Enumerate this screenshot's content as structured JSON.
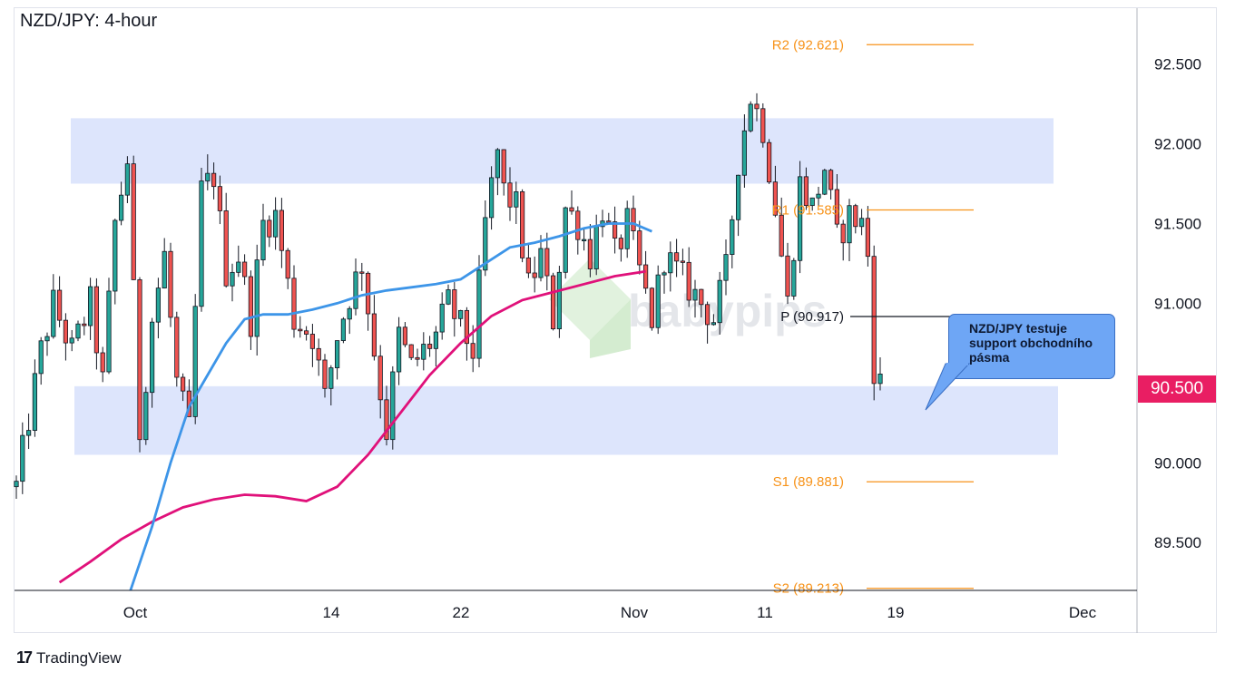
{
  "header": {
    "title": "NZD/JPY: 4-hour"
  },
  "branding": {
    "logo_mark": "17",
    "logo_text": "TradingView",
    "watermark": "babypips"
  },
  "callout": {
    "text": "NZD/JPY testuje support obchodního pásma"
  },
  "last_price": {
    "label": "90.500",
    "color": "#e91e63"
  },
  "chart_data": {
    "type": "candlestick",
    "title": "NZD/JPY: 4-hour",
    "ylim": [
      89.2,
      92.85
    ],
    "y_ticks": [
      "92.500",
      "92.000",
      "91.500",
      "91.000",
      "90.500",
      "90.000",
      "89.500"
    ],
    "x_ticks": [
      "Oct",
      "14",
      "22",
      "Nov",
      "11",
      "19",
      "Dec"
    ],
    "colors": {
      "up": "#26a69a",
      "down": "#ef5350",
      "candle": "#131722",
      "sma_fast": "#3d95e8",
      "sma_slow": "#e0117a",
      "pivot": "#f7931a",
      "zone": "#dde5fc"
    },
    "zones": [
      {
        "name": "resistance",
        "from": 91.75,
        "to": 92.16
      },
      {
        "name": "support",
        "from": 90.05,
        "to": 90.48
      }
    ],
    "pivot_levels": [
      {
        "label": "R2 (92.621)",
        "value": 92.621,
        "color": "#f7931a"
      },
      {
        "label": "R1 (91.585)",
        "value": 91.585,
        "color": "#f7931a"
      },
      {
        "label": "P (90.917)",
        "value": 90.917,
        "color": "#131722"
      },
      {
        "label": "S1 (89.881)",
        "value": 89.881,
        "color": "#f7931a"
      },
      {
        "label": "S2 (89.213)",
        "value": 89.213,
        "color": "#f7931a"
      }
    ],
    "price_path": [
      [
        0,
        89.85
      ],
      [
        4,
        90.7
      ],
      [
        6,
        91.0
      ],
      [
        9,
        90.7
      ],
      [
        12,
        91.0
      ],
      [
        14,
        90.5
      ],
      [
        16,
        91.5
      ],
      [
        18,
        91.9
      ],
      [
        20,
        90.2
      ],
      [
        22,
        90.9
      ],
      [
        24,
        91.3
      ],
      [
        26,
        90.5
      ],
      [
        28,
        90.2
      ],
      [
        30,
        91.7
      ],
      [
        32,
        91.8
      ],
      [
        34,
        91.2
      ],
      [
        36,
        91.3
      ],
      [
        38,
        90.9
      ],
      [
        40,
        91.5
      ],
      [
        42,
        91.55
      ],
      [
        45,
        90.9
      ],
      [
        48,
        90.8
      ],
      [
        50,
        90.4
      ],
      [
        52,
        90.8
      ],
      [
        54,
        91.05
      ],
      [
        56,
        91.25
      ],
      [
        58,
        90.7
      ],
      [
        60,
        90.2
      ],
      [
        62,
        90.8
      ],
      [
        64,
        90.6
      ],
      [
        66,
        90.7
      ],
      [
        68,
        90.8
      ],
      [
        70,
        91.0
      ],
      [
        72,
        90.85
      ],
      [
        74,
        90.7
      ],
      [
        76,
        91.5
      ],
      [
        78,
        91.95
      ],
      [
        79,
        91.7
      ],
      [
        81,
        91.6
      ],
      [
        83,
        91.1
      ],
      [
        85,
        91.3
      ],
      [
        87,
        90.9
      ],
      [
        89,
        91.6
      ],
      [
        91,
        91.5
      ],
      [
        93,
        91.3
      ],
      [
        95,
        91.6
      ],
      [
        97,
        91.3
      ],
      [
        99,
        91.5
      ],
      [
        101,
        91.2
      ],
      [
        103,
        90.9
      ],
      [
        105,
        91.3
      ],
      [
        107,
        91.2
      ],
      [
        109,
        91.1
      ],
      [
        111,
        91.0
      ],
      [
        113,
        90.9
      ],
      [
        115,
        91.2
      ],
      [
        117,
        91.9
      ],
      [
        119,
        92.3
      ],
      [
        121,
        92.1
      ],
      [
        123,
        91.6
      ],
      [
        125,
        91.0
      ],
      [
        127,
        91.75
      ],
      [
        129,
        91.6
      ],
      [
        131,
        91.85
      ],
      [
        133,
        91.4
      ],
      [
        135,
        91.55
      ],
      [
        137,
        91.5
      ],
      [
        138,
        91.3
      ],
      [
        139,
        90.6
      ],
      [
        140,
        90.5
      ]
    ],
    "sma_fast": [
      [
        18.5,
        89.2
      ],
      [
        22,
        89.6
      ],
      [
        25,
        90.0
      ],
      [
        28,
        90.35
      ],
      [
        31,
        90.55
      ],
      [
        34,
        90.75
      ],
      [
        37,
        90.9
      ],
      [
        40,
        90.93
      ],
      [
        44,
        90.93
      ],
      [
        48,
        90.96
      ],
      [
        52,
        91.0
      ],
      [
        56,
        91.05
      ],
      [
        60,
        91.08
      ],
      [
        64,
        91.1
      ],
      [
        68,
        91.12
      ],
      [
        72,
        91.15
      ],
      [
        76,
        91.25
      ],
      [
        80,
        91.35
      ],
      [
        84,
        91.38
      ],
      [
        88,
        91.42
      ],
      [
        92,
        91.47
      ],
      [
        96,
        91.5
      ],
      [
        100,
        91.5
      ],
      [
        103,
        91.45
      ]
    ],
    "sma_slow": [
      [
        7,
        89.25
      ],
      [
        12,
        89.38
      ],
      [
        17,
        89.52
      ],
      [
        22,
        89.63
      ],
      [
        27,
        89.72
      ],
      [
        32,
        89.77
      ],
      [
        37,
        89.8
      ],
      [
        42,
        89.79
      ],
      [
        47,
        89.76
      ],
      [
        52,
        89.85
      ],
      [
        57,
        90.05
      ],
      [
        62,
        90.3
      ],
      [
        67,
        90.55
      ],
      [
        72,
        90.75
      ],
      [
        77,
        90.92
      ],
      [
        82,
        91.02
      ],
      [
        87,
        91.07
      ],
      [
        92,
        91.12
      ],
      [
        97,
        91.17
      ],
      [
        102,
        91.2
      ]
    ]
  }
}
